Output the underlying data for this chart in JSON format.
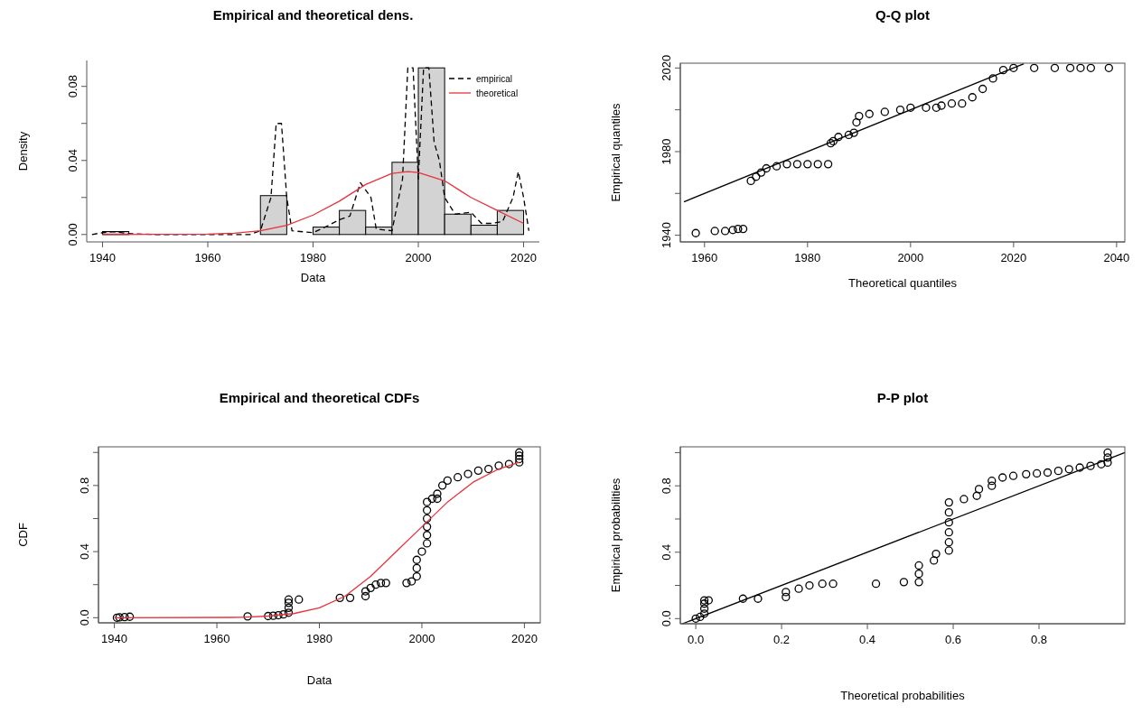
{
  "chart_data": [
    {
      "type": "histogram",
      "title": "Empirical and theoretical dens.",
      "xlabel": "Data",
      "ylabel": "Density",
      "bins": [
        1940,
        1945,
        1950,
        1955,
        1960,
        1965,
        1970,
        1975,
        1980,
        1985,
        1990,
        1995,
        2000,
        2005,
        2010,
        2015,
        2020
      ],
      "values": [
        0.0016,
        0,
        0,
        0,
        0,
        0,
        0.021,
        0,
        0.004,
        0.013,
        0.004,
        0.039,
        0.09,
        0.011,
        0.005,
        0.013
      ],
      "color": "#d3d3d3",
      "xlim": [
        1937,
        2023
      ],
      "ylim": [
        -0.004,
        0.094
      ],
      "xticks": [
        1940,
        1960,
        1980,
        2000,
        2020
      ],
      "yticks": [
        {
          "value": 0,
          "label": "0.00"
        },
        {
          "value": 0.02,
          "label": null
        },
        {
          "value": 0.04,
          "label": "0.04"
        },
        {
          "value": 0.06,
          "label": null
        },
        {
          "value": 0.08,
          "label": "0.08"
        }
      ],
      "legend": "top right",
      "series": [
        {
          "name": "empirical",
          "type": "line",
          "line_style": "dashed",
          "color": "#000000",
          "x": [
            1938,
            1940,
            1942,
            1945,
            1950,
            1968,
            1970,
            1972,
            1973,
            1974,
            1975,
            1976,
            1980,
            1983,
            1985,
            1987,
            1989,
            1991,
            1992,
            1995,
            1997,
            1998,
            1999,
            2000,
            2001,
            2002,
            2003,
            2004,
            2005,
            2007,
            2010,
            2012,
            2014,
            2016,
            2018,
            2019,
            2020,
            2021
          ],
          "values": [
            0,
            0.001,
            0.0015,
            0.0005,
            0,
            0,
            0.002,
            0.02,
            0.06,
            0.06,
            0.02,
            0.002,
            0.001,
            0.005,
            0.008,
            0.01,
            0.028,
            0.02,
            0.003,
            0.002,
            0.03,
            0.09,
            0.09,
            0.03,
            0.09,
            0.09,
            0.05,
            0.04,
            0.02,
            0.011,
            0.012,
            0.006,
            0.006,
            0.007,
            0.02,
            0.034,
            0.02,
            0.002
          ]
        },
        {
          "name": "theoretical",
          "type": "line",
          "line_style": "solid",
          "color": "#e8323c",
          "x": [
            1940,
            1960,
            1965,
            1970,
            1975,
            1980,
            1985,
            1990,
            1995,
            1998,
            2000,
            2005,
            2010,
            2015,
            2020
          ],
          "values": [
            0,
            0.0002,
            0.0007,
            0.002,
            0.005,
            0.0105,
            0.018,
            0.027,
            0.033,
            0.034,
            0.0335,
            0.029,
            0.02,
            0.013,
            0.006
          ]
        }
      ]
    },
    {
      "type": "scatter",
      "title": "Q-Q plot",
      "xlabel": "Theoretical quantiles",
      "ylabel": "Empirical quantiles",
      "xlim": [
        1955.3,
        2041.6
      ],
      "ylim": [
        1936.8,
        2022.3
      ],
      "xticks": [
        1960,
        1980,
        2000,
        2020,
        2040
      ],
      "yticks": [
        1940,
        {
          "value": 1960,
          "label": null
        },
        1980,
        {
          "value": 2000,
          "label": null
        },
        2020
      ],
      "marker": "circle",
      "series": [
        {
          "type": "scatter",
          "color": "#000000",
          "x": [
            1958.3,
            1962,
            1964,
            1965.5,
            1966.5,
            1967.5,
            1969,
            1970,
            1971,
            1972,
            1974,
            1976,
            1978,
            1980,
            1982,
            1984,
            1984.5,
            1985,
            1986,
            1988,
            1989,
            1989.5,
            1990,
            1992,
            1995,
            1998,
            2000,
            2003,
            2005,
            2006,
            2008,
            2010,
            2012,
            2014,
            2016,
            2018,
            2020,
            2024,
            2028,
            2031,
            2033,
            2035,
            2038.5
          ],
          "values": [
            1941,
            1942,
            1942,
            1942.5,
            1943,
            1943,
            1966,
            1968,
            1970,
            1972,
            1973,
            1974,
            1974,
            1974,
            1974,
            1974,
            1984,
            1985,
            1987,
            1988,
            1989,
            1994,
            1997,
            1998,
            1999,
            2000,
            2001,
            2001,
            2001,
            2002,
            2003,
            2003,
            2006,
            2010,
            2015,
            2019,
            2020,
            2020,
            2020,
            2020,
            2020,
            2020,
            2020
          ]
        },
        {
          "type": "line",
          "marker": "none",
          "color": "#000000",
          "x": [
            1956,
            2022
          ],
          "values": [
            1956,
            2022
          ]
        }
      ]
    },
    {
      "type": "scatter",
      "title": "Empirical and theoretical CDFs",
      "xlabel": "Data",
      "ylabel": "CDF",
      "xlim": [
        1936.9,
        2023.1
      ],
      "ylim": [
        -0.031,
        1.034
      ],
      "xticks": [
        1940,
        1960,
        1980,
        2000,
        2020
      ],
      "yticks": [
        {
          "value": 0,
          "label": "0.0"
        },
        {
          "value": 0.2,
          "label": null
        },
        {
          "value": 0.4,
          "label": "0.4"
        },
        {
          "value": 0.6,
          "label": null
        },
        {
          "value": 0.8,
          "label": "0.8"
        },
        {
          "value": 1,
          "label": null
        }
      ],
      "marker": "circle",
      "series": [
        {
          "type": "scatter",
          "color": "#000000",
          "x": [
            1940.5,
            1941,
            1942,
            1943,
            1966,
            1970,
            1971,
            1972,
            1973,
            1974,
            1974,
            1974,
            1974,
            1976,
            1984,
            1986,
            1989,
            1989,
            1990,
            1991,
            1992,
            1993,
            1997,
            1998,
            1999,
            1999,
            1999,
            2000,
            2001,
            2001,
            2001,
            2001,
            2001,
            2001,
            2002,
            2003,
            2003,
            2004,
            2005,
            2007,
            2009,
            2011,
            2013,
            2015,
            2017,
            2019,
            2019,
            2019,
            2019
          ],
          "values": [
            0,
            0.002,
            0.004,
            0.006,
            0.008,
            0.01,
            0.012,
            0.015,
            0.02,
            0.03,
            0.06,
            0.09,
            0.11,
            0.11,
            0.12,
            0.12,
            0.13,
            0.16,
            0.18,
            0.2,
            0.21,
            0.21,
            0.21,
            0.22,
            0.25,
            0.3,
            0.35,
            0.4,
            0.45,
            0.5,
            0.55,
            0.6,
            0.65,
            0.7,
            0.72,
            0.72,
            0.75,
            0.8,
            0.83,
            0.85,
            0.87,
            0.89,
            0.9,
            0.92,
            0.93,
            0.94,
            0.96,
            0.98,
            1.0
          ]
        },
        {
          "type": "line",
          "marker": "none",
          "color": "#e8323c",
          "x": [
            1940,
            1965,
            1970,
            1975,
            1980,
            1985,
            1990,
            1995,
            2000,
            2005,
            2010,
            2015,
            2019
          ],
          "values": [
            0,
            0.002,
            0.01,
            0.025,
            0.06,
            0.13,
            0.25,
            0.4,
            0.55,
            0.7,
            0.82,
            0.9,
            0.94
          ]
        }
      ]
    },
    {
      "type": "scatter",
      "title": "P-P plot",
      "xlabel": "Theoretical probabilities",
      "ylabel": "Empirical probabilities",
      "xlim": [
        -0.036,
        1.0
      ],
      "ylim": [
        -0.031,
        1.035
      ],
      "xticks": [
        {
          "value": 0,
          "label": "0.0"
        },
        0.2,
        0.4,
        0.6,
        0.8
      ],
      "yticks": [
        {
          "value": 0,
          "label": "0.0"
        },
        {
          "value": 0.2,
          "label": null
        },
        {
          "value": 0.4,
          "label": "0.4"
        },
        {
          "value": 0.6,
          "label": null
        },
        {
          "value": 0.8,
          "label": "0.8"
        },
        {
          "value": 1,
          "label": null
        }
      ],
      "marker": "circle",
      "series": [
        {
          "type": "scatter",
          "color": "#000000",
          "x": [
            0,
            0.01,
            0.02,
            0.02,
            0.02,
            0.02,
            0.03,
            0.11,
            0.145,
            0.21,
            0.21,
            0.24,
            0.265,
            0.295,
            0.32,
            0.42,
            0.485,
            0.52,
            0.52,
            0.52,
            0.555,
            0.56,
            0.59,
            0.59,
            0.59,
            0.59,
            0.59,
            0.59,
            0.625,
            0.655,
            0.66,
            0.69,
            0.69,
            0.715,
            0.74,
            0.77,
            0.795,
            0.82,
            0.845,
            0.87,
            0.895,
            0.92,
            0.945,
            0.96,
            0.96,
            0.96
          ],
          "values": [
            0,
            0.01,
            0.03,
            0.06,
            0.09,
            0.11,
            0.11,
            0.12,
            0.12,
            0.13,
            0.16,
            0.18,
            0.2,
            0.21,
            0.21,
            0.21,
            0.22,
            0.22,
            0.27,
            0.32,
            0.35,
            0.39,
            0.41,
            0.46,
            0.52,
            0.58,
            0.64,
            0.7,
            0.72,
            0.74,
            0.78,
            0.8,
            0.83,
            0.85,
            0.86,
            0.87,
            0.875,
            0.88,
            0.89,
            0.9,
            0.91,
            0.92,
            0.93,
            0.94,
            0.97,
            1.0
          ]
        },
        {
          "type": "line",
          "marker": "none",
          "color": "#000000",
          "x": [
            -0.031,
            1.0
          ],
          "values": [
            -0.031,
            1.0
          ]
        }
      ]
    }
  ]
}
